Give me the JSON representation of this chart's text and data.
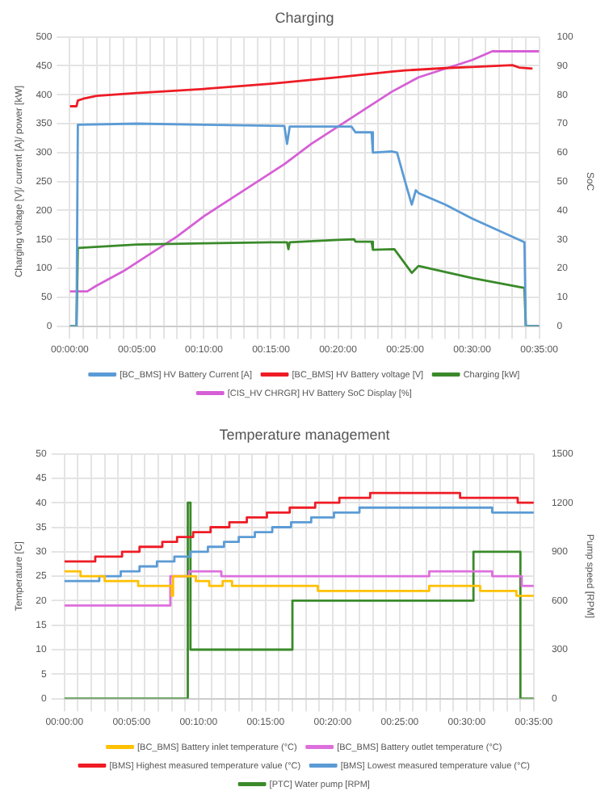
{
  "chart_data": [
    {
      "type": "line",
      "title": "Charging",
      "ylabel": "Charging voltage [V]/ current [A]/ power [kW]",
      "y2label": "SoC",
      "xlim": [
        0,
        35
      ],
      "xticks": [
        {
          "value": 0,
          "label": "00:00:00"
        },
        {
          "value": 1,
          "label": null
        },
        {
          "value": 2,
          "label": null
        },
        {
          "value": 3,
          "label": null
        },
        {
          "value": 4,
          "label": null
        },
        {
          "value": 5,
          "label": "00:05:00"
        },
        {
          "value": 6,
          "label": null
        },
        {
          "value": 7,
          "label": null
        },
        {
          "value": 8,
          "label": null
        },
        {
          "value": 9,
          "label": null
        },
        {
          "value": 10,
          "label": "00:10:00"
        },
        {
          "value": 11,
          "label": null
        },
        {
          "value": 12,
          "label": null
        },
        {
          "value": 13,
          "label": null
        },
        {
          "value": 14,
          "label": null
        },
        {
          "value": 15,
          "label": "00:15:00"
        },
        {
          "value": 16,
          "label": null
        },
        {
          "value": 17,
          "label": null
        },
        {
          "value": 18,
          "label": null
        },
        {
          "value": 19,
          "label": null
        },
        {
          "value": 20,
          "label": "00:20:00"
        },
        {
          "value": 21,
          "label": null
        },
        {
          "value": 22,
          "label": null
        },
        {
          "value": 23,
          "label": null
        },
        {
          "value": 24,
          "label": null
        },
        {
          "value": 25,
          "label": "00:25:00"
        },
        {
          "value": 26,
          "label": null
        },
        {
          "value": 27,
          "label": null
        },
        {
          "value": 28,
          "label": null
        },
        {
          "value": 29,
          "label": null
        },
        {
          "value": 30,
          "label": "00:30:00"
        },
        {
          "value": 31,
          "label": null
        },
        {
          "value": 32,
          "label": null
        },
        {
          "value": 33,
          "label": null
        },
        {
          "value": 34,
          "label": null
        },
        {
          "value": 35,
          "label": "00:35:00"
        }
      ],
      "ylim": [
        0,
        500
      ],
      "yticks": [
        0,
        50,
        100,
        150,
        200,
        250,
        300,
        350,
        400,
        450,
        500
      ],
      "y2lim": [
        0,
        100
      ],
      "y2ticks": [
        0,
        10,
        20,
        30,
        40,
        50,
        60,
        70,
        80,
        90,
        100
      ],
      "grid": true,
      "legend": "bottom",
      "series": [
        {
          "name": "[BC_BMS] HV Battery Current [A]",
          "color": "#5b9bd5",
          "x": [
            0,
            0.5,
            0.6,
            5,
            10,
            16,
            16.2,
            16.4,
            21,
            21.3,
            22.5,
            22.6,
            24,
            24.4,
            25,
            25.5,
            25.8,
            26,
            28,
            30,
            32,
            33.9,
            34,
            35
          ],
          "values": [
            0,
            0,
            348,
            350,
            348,
            346,
            315,
            345,
            345,
            335,
            335,
            300,
            302,
            300,
            250,
            210,
            235,
            230,
            210,
            186,
            165,
            145,
            0,
            0
          ]
        },
        {
          "name": "[BC_BMS] HV Battery voltage [V]",
          "color": "#ee1c25",
          "x": [
            0,
            0.5,
            0.6,
            1,
            2,
            5,
            10,
            15,
            20,
            24,
            25,
            28,
            30,
            33,
            33.5,
            34.5
          ],
          "values": [
            380,
            380,
            390,
            393,
            398,
            403,
            410,
            419,
            430,
            440,
            442,
            446,
            448,
            451,
            447,
            445
          ]
        },
        {
          "name": "Charging [kW]",
          "color": "#3a8a2a",
          "x": [
            0,
            0.5,
            0.6,
            5,
            10,
            15,
            16.2,
            16.3,
            16.4,
            20,
            21.2,
            21.3,
            22.5,
            22.6,
            24.2,
            25.5,
            26,
            30,
            33.9,
            34,
            35
          ],
          "values": [
            0,
            0,
            135,
            141,
            143,
            145,
            145,
            133,
            145,
            149,
            150,
            146,
            146,
            132,
            133,
            92,
            104,
            83,
            66,
            0,
            0
          ]
        },
        {
          "name": "[CIS_HV CHRGR] HV Battery SoC Display [%]",
          "color": "#d65fd6",
          "axis": "y2",
          "x": [
            0,
            1.3,
            2,
            4,
            6,
            8,
            10,
            12,
            14,
            16,
            18,
            20,
            22,
            24,
            26,
            28,
            30,
            31.5,
            35
          ],
          "values": [
            12,
            12,
            14,
            19,
            25,
            31,
            38,
            44,
            50,
            56,
            63,
            69,
            75,
            81,
            86,
            89,
            92,
            95,
            95
          ]
        }
      ]
    },
    {
      "type": "step",
      "title": "Temperature management",
      "ylabel": "Temperature [C]",
      "y2label": "Pump speed [RPM]",
      "xlim": [
        0,
        35
      ],
      "xticks": [
        {
          "value": 0,
          "label": "00:00:00"
        },
        {
          "value": 1,
          "label": null
        },
        {
          "value": 2,
          "label": null
        },
        {
          "value": 3,
          "label": null
        },
        {
          "value": 4,
          "label": null
        },
        {
          "value": 5,
          "label": "00:05:00"
        },
        {
          "value": 6,
          "label": null
        },
        {
          "value": 7,
          "label": null
        },
        {
          "value": 8,
          "label": null
        },
        {
          "value": 9,
          "label": null
        },
        {
          "value": 10,
          "label": "00:10:00"
        },
        {
          "value": 11,
          "label": null
        },
        {
          "value": 12,
          "label": null
        },
        {
          "value": 13,
          "label": null
        },
        {
          "value": 14,
          "label": null
        },
        {
          "value": 15,
          "label": "00:15:00"
        },
        {
          "value": 16,
          "label": null
        },
        {
          "value": 17,
          "label": null
        },
        {
          "value": 18,
          "label": null
        },
        {
          "value": 19,
          "label": null
        },
        {
          "value": 20,
          "label": "00:20:00"
        },
        {
          "value": 21,
          "label": null
        },
        {
          "value": 22,
          "label": null
        },
        {
          "value": 23,
          "label": null
        },
        {
          "value": 24,
          "label": null
        },
        {
          "value": 25,
          "label": "00:25:00"
        },
        {
          "value": 26,
          "label": null
        },
        {
          "value": 27,
          "label": null
        },
        {
          "value": 28,
          "label": null
        },
        {
          "value": 29,
          "label": null
        },
        {
          "value": 30,
          "label": "00:30:00"
        },
        {
          "value": 31,
          "label": null
        },
        {
          "value": 32,
          "label": null
        },
        {
          "value": 33,
          "label": null
        },
        {
          "value": 34,
          "label": null
        },
        {
          "value": 35,
          "label": "00:35:00"
        }
      ],
      "ylim": [
        0,
        50
      ],
      "yticks": [
        0,
        5,
        10,
        15,
        20,
        25,
        30,
        35,
        40,
        45,
        50
      ],
      "y2lim": [
        0,
        1500
      ],
      "y2ticks": [
        0,
        300,
        600,
        900,
        1200,
        1500
      ],
      "grid": true,
      "legend": "bottom",
      "series": [
        {
          "name": "[BC_BMS] Battery inlet temperature (°C)",
          "color": "#ffc000",
          "x": [
            0,
            1.2,
            3,
            5.5,
            8,
            8.1,
            9.8,
            10.8,
            11.8,
            12.5,
            18.9,
            27.2,
            31,
            33.7,
            35
          ],
          "values": [
            26,
            25,
            24,
            23,
            21,
            25,
            24,
            23,
            24,
            23,
            22,
            23,
            22,
            21,
            21
          ]
        },
        {
          "name": "[BC_BMS] Battery outlet temperature (°C)",
          "color": "#dd6fdd",
          "x": [
            0,
            7.9,
            9.3,
            11.7,
            27.2,
            31.9,
            34.1,
            35
          ],
          "values": [
            19,
            25,
            26,
            25,
            26,
            25,
            23,
            23
          ]
        },
        {
          "name": "[BMS] Highest measured temperature value (°C)",
          "color": "#ee1c25",
          "x": [
            0,
            2.3,
            4.3,
            5.6,
            7.3,
            8.4,
            9.6,
            10.9,
            12.3,
            13.6,
            15.1,
            16.8,
            18.7,
            20.5,
            22.8,
            29.5,
            33.8,
            35
          ],
          "values": [
            28,
            29,
            30,
            31,
            32,
            33,
            34,
            35,
            36,
            37,
            38,
            39,
            40,
            41,
            42,
            41,
            40,
            40
          ]
        },
        {
          "name": "[BMS] Lowest measured temperature value (°C)",
          "color": "#5b9bd5",
          "x": [
            0,
            2.6,
            4.2,
            5.6,
            6.9,
            8.2,
            9.4,
            10.7,
            11.9,
            13,
            14.2,
            15.5,
            16.9,
            18.4,
            20.1,
            22,
            31.9,
            35
          ],
          "values": [
            24,
            25,
            26,
            27,
            28,
            29,
            30,
            31,
            32,
            33,
            34,
            35,
            36,
            37,
            38,
            39,
            38,
            38
          ]
        },
        {
          "name": "[PTC] Water pump [RPM]",
          "color": "#3a8a2a",
          "axis": "y2",
          "x": [
            0,
            9.2,
            9.4,
            17,
            30.5,
            34,
            35
          ],
          "values": [
            0,
            1200,
            300,
            600,
            900,
            0,
            0
          ]
        }
      ]
    }
  ]
}
